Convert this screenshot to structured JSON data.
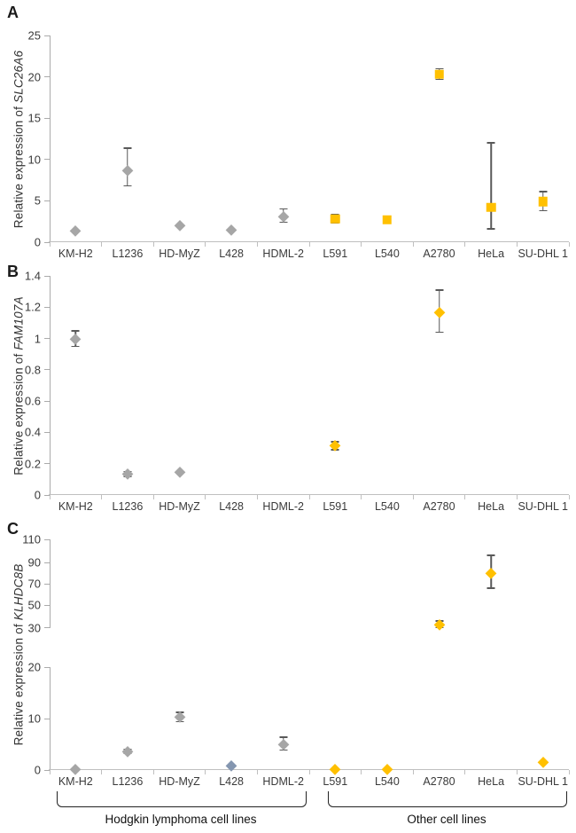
{
  "page": {
    "background": "#ffffff"
  },
  "categories": [
    "KM-H2",
    "L1236",
    "HD-MyZ",
    "L428",
    "HDML-2",
    "L591",
    "L540",
    "A2780",
    "HeLa",
    "SU-DHL 1"
  ],
  "groups": {
    "left_label": "Hodgkin lymphoma cell lines",
    "left_span": [
      "KM-H2",
      "HDML-2"
    ],
    "right_label": "Other cell lines",
    "right_span": [
      "L591",
      "SU-DHL 1"
    ]
  },
  "colors": {
    "gray": "#a6a6a6",
    "yellow": "#ffc000",
    "blue": "#8496b0",
    "whisker": "#595959",
    "axis": "#ababab",
    "text": "#3a3a3a"
  },
  "chart_data": [
    {
      "panel_label": "A",
      "type": "scatter",
      "ylabel_prefix": "Relative expression of ",
      "ylabel_gene": "SLC26A6",
      "xlabel": "",
      "ylim": [
        0,
        25
      ],
      "grid": false,
      "legend": "none",
      "yticks": [
        {
          "v": 0,
          "label": "0"
        },
        {
          "v": 5,
          "label": "5"
        },
        {
          "v": 10,
          "label": "10"
        },
        {
          "v": 15,
          "label": "15"
        },
        {
          "v": 20,
          "label": "20"
        },
        {
          "v": 25,
          "label": "25"
        }
      ],
      "value_anchors": [
        [
          0,
          0
        ],
        [
          25,
          1
        ]
      ],
      "points": [
        {
          "category": "KM-H2",
          "value": 1.4,
          "err_lo": null,
          "err_hi": null,
          "marker": "diamond",
          "color": "gray"
        },
        {
          "category": "L1236",
          "value": 8.7,
          "err_lo": 6.8,
          "err_hi": 11.4,
          "marker": "diamond",
          "color": "gray"
        },
        {
          "category": "HD-MyZ",
          "value": 2.0,
          "err_lo": null,
          "err_hi": null,
          "marker": "diamond",
          "color": "gray"
        },
        {
          "category": "L428",
          "value": 1.5,
          "err_lo": null,
          "err_hi": null,
          "marker": "diamond",
          "color": "gray"
        },
        {
          "category": "HDML-2",
          "value": 3.1,
          "err_lo": 2.4,
          "err_hi": 4.0,
          "marker": "diamond",
          "color": "gray"
        },
        {
          "category": "L591",
          "value": 2.8,
          "err_lo": 2.3,
          "err_hi": 3.4,
          "marker": "square",
          "color": "yellow"
        },
        {
          "category": "L540",
          "value": 2.7,
          "err_lo": null,
          "err_hi": null,
          "marker": "square",
          "color": "yellow"
        },
        {
          "category": "A2780",
          "value": 20.3,
          "err_lo": 19.7,
          "err_hi": 21.0,
          "marker": "square",
          "color": "yellow"
        },
        {
          "category": "HeLa",
          "value": 4.2,
          "err_lo": 1.6,
          "err_hi": 12.0,
          "marker": "square",
          "color": "yellow"
        },
        {
          "category": "SU-DHL 1",
          "value": 4.9,
          "err_lo": 3.8,
          "err_hi": 6.1,
          "marker": "square",
          "color": "yellow"
        }
      ]
    },
    {
      "panel_label": "B",
      "type": "scatter",
      "ylabel_prefix": "Relative expression of ",
      "ylabel_gene": "FAM107A",
      "xlabel": "",
      "ylim": [
        0,
        1.4
      ],
      "grid": false,
      "legend": "none",
      "yticks": [
        {
          "v": 0,
          "label": "0"
        },
        {
          "v": 0.2,
          "label": "0.2"
        },
        {
          "v": 0.4,
          "label": "0.4"
        },
        {
          "v": 0.6,
          "label": "0.6"
        },
        {
          "v": 0.8,
          "label": "0.8"
        },
        {
          "v": 1,
          "label": "1"
        },
        {
          "v": 1.2,
          "label": "1.2"
        },
        {
          "v": 1.4,
          "label": "1.4"
        }
      ],
      "value_anchors": [
        [
          0,
          0
        ],
        [
          1.4,
          1
        ]
      ],
      "points": [
        {
          "category": "KM-H2",
          "value": 1.0,
          "err_lo": 0.95,
          "err_hi": 1.05,
          "marker": "diamond",
          "color": "gray"
        },
        {
          "category": "L1236",
          "value": 0.135,
          "err_lo": 0.12,
          "err_hi": 0.15,
          "marker": "diamond",
          "color": "gray"
        },
        {
          "category": "HD-MyZ",
          "value": 0.15,
          "err_lo": null,
          "err_hi": null,
          "marker": "diamond",
          "color": "gray"
        },
        {
          "category": "L591",
          "value": 0.315,
          "err_lo": 0.29,
          "err_hi": 0.34,
          "marker": "diamond",
          "color": "yellow"
        },
        {
          "category": "A2780",
          "value": 1.17,
          "err_lo": 1.04,
          "err_hi": 1.31,
          "marker": "diamond",
          "color": "yellow"
        }
      ]
    },
    {
      "panel_label": "C",
      "type": "scatter",
      "ylabel_prefix": "Relative expression of ",
      "ylabel_gene": "KLHDC8B",
      "xlabel": "",
      "ylim": [
        0,
        110
      ],
      "grid": false,
      "legend": "none",
      "axis_break": [
        20,
        30
      ],
      "axis_segments": [
        [
          0,
          0.4449
        ],
        [
          0.6168,
          1
        ]
      ],
      "yticks": [
        {
          "v": 0,
          "label": "0"
        },
        {
          "v": 10,
          "label": "10"
        },
        {
          "v": 20,
          "label": "20"
        },
        {
          "v": 30,
          "label": "30"
        },
        {
          "v": 50,
          "label": "50"
        },
        {
          "v": 70,
          "label": "70"
        },
        {
          "v": 90,
          "label": "90"
        },
        {
          "v": 110,
          "label": "110"
        }
      ],
      "value_anchors": [
        [
          0,
          0
        ],
        [
          10,
          0.2224
        ],
        [
          20,
          0.4449
        ],
        [
          30,
          0.6168
        ],
        [
          50,
          0.7148
        ],
        [
          70,
          0.8073
        ],
        [
          90,
          0.8998
        ],
        [
          110,
          1
        ]
      ],
      "points": [
        {
          "category": "KM-H2",
          "value": 0.1,
          "err_lo": null,
          "err_hi": null,
          "marker": "diamond",
          "color": "gray"
        },
        {
          "category": "L1236",
          "value": 3.6,
          "err_lo": 3.2,
          "err_hi": 4.0,
          "marker": "diamond",
          "color": "gray"
        },
        {
          "category": "HD-MyZ",
          "value": 10.3,
          "err_lo": 9.4,
          "err_hi": 11.2,
          "marker": "diamond",
          "color": "gray"
        },
        {
          "category": "L428",
          "value": 0.8,
          "err_lo": null,
          "err_hi": null,
          "marker": "diamond",
          "color": "blue"
        },
        {
          "category": "HDML-2",
          "value": 5.0,
          "err_lo": 3.9,
          "err_hi": 6.4,
          "marker": "diamond",
          "color": "gray"
        },
        {
          "category": "L591",
          "value": 0.2,
          "err_lo": null,
          "err_hi": null,
          "marker": "diamond",
          "color": "yellow"
        },
        {
          "category": "L540",
          "value": 0.1,
          "err_lo": null,
          "err_hi": null,
          "marker": "diamond",
          "color": "yellow"
        },
        {
          "category": "A2780",
          "value": 33,
          "err_lo": 30,
          "err_hi": 36,
          "marker": "diamond",
          "color": "yellow"
        },
        {
          "category": "HeLa",
          "value": 80,
          "err_lo": 66,
          "err_hi": 96,
          "marker": "diamond",
          "color": "yellow"
        },
        {
          "category": "SU-DHL 1",
          "value": 1.5,
          "err_lo": null,
          "err_hi": null,
          "marker": "diamond",
          "color": "yellow"
        }
      ]
    }
  ]
}
